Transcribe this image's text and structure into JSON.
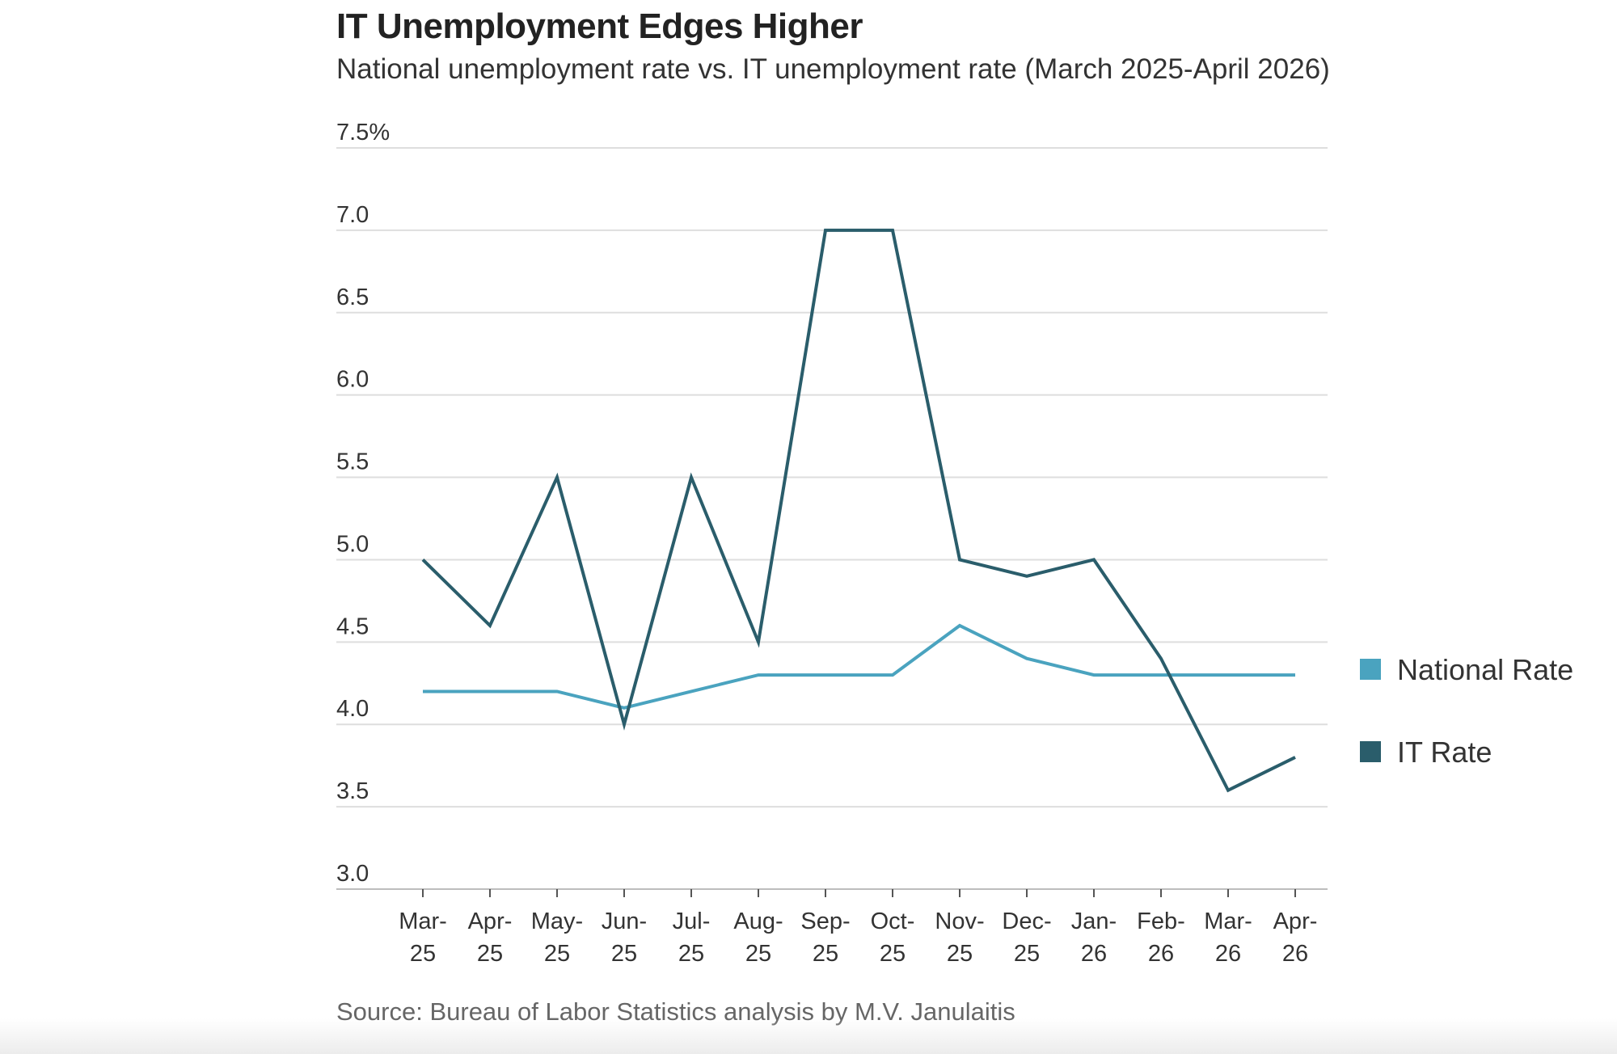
{
  "chart_data": {
    "type": "line",
    "title": "IT Unemployment Edges Higher",
    "subtitle": "National unemployment rate vs. IT unemployment rate (March 2025-April 2026)",
    "source": "Source: Bureau of Labor Statistics analysis by M.V. Janulaitis",
    "categories": [
      [
        "Mar-",
        "25"
      ],
      [
        "Apr-",
        "25"
      ],
      [
        "May-",
        "25"
      ],
      [
        "Jun-",
        "25"
      ],
      [
        "Jul-",
        "25"
      ],
      [
        "Aug-",
        "25"
      ],
      [
        "Sep-",
        "25"
      ],
      [
        "Oct-",
        "25"
      ],
      [
        "Nov-",
        "25"
      ],
      [
        "Dec-",
        "25"
      ],
      [
        "Jan-",
        "26"
      ],
      [
        "Feb-",
        "26"
      ],
      [
        "Mar-",
        "26"
      ],
      [
        "Apr-",
        "26"
      ]
    ],
    "ylim": [
      3.0,
      7.5
    ],
    "yticks": [
      {
        "value": 7.5,
        "label": "7.5%"
      },
      {
        "value": 7.0,
        "label": "7.0"
      },
      {
        "value": 6.5,
        "label": "6.5"
      },
      {
        "value": 6.0,
        "label": "6.0"
      },
      {
        "value": 5.5,
        "label": "5.5"
      },
      {
        "value": 5.0,
        "label": "5.0"
      },
      {
        "value": 4.5,
        "label": "4.5"
      },
      {
        "value": 4.0,
        "label": "4.0"
      },
      {
        "value": 3.5,
        "label": "3.5"
      },
      {
        "value": 3.0,
        "label": "3.0"
      }
    ],
    "grid": true,
    "legend_position": "right",
    "series": [
      {
        "name": "National Rate",
        "color": "#4aa3bf",
        "values": [
          4.2,
          4.2,
          4.2,
          4.1,
          4.2,
          4.3,
          4.3,
          4.3,
          4.6,
          4.4,
          4.3,
          4.3,
          4.3,
          4.3
        ]
      },
      {
        "name": "IT Rate",
        "color": "#2a5d6b",
        "values": [
          5.0,
          4.6,
          5.5,
          4.0,
          5.5,
          4.5,
          7.0,
          7.0,
          5.0,
          4.9,
          5.0,
          4.4,
          3.6,
          3.8
        ]
      }
    ]
  }
}
